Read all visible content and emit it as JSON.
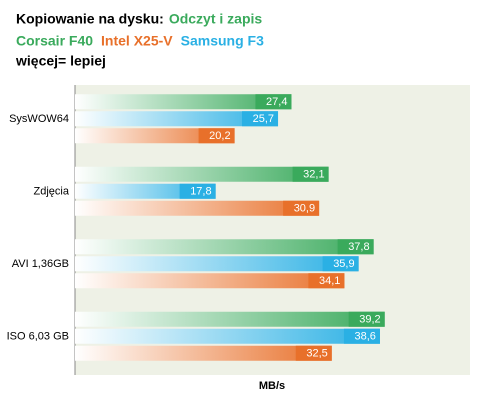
{
  "chart_data": {
    "type": "hbar",
    "title": "Kopiowanie na dysku:",
    "title_highlight": "Odczyt i zapis",
    "note": "więcej= lepiej",
    "xlabel": "MB/s",
    "categories": [
      "SysWOW64",
      "Zdjęcia",
      "AVI 1,36GB",
      "ISO 6,03 GB"
    ],
    "xlim": [
      0,
      50
    ],
    "series": [
      {
        "name": "Corsair F40",
        "color": "#3aaa5c",
        "values": [
          27.4,
          32.1,
          37.8,
          39.2
        ],
        "value_labels": [
          "27,4",
          "32,1",
          "37,8",
          "39,2"
        ]
      },
      {
        "name": "Intel X25-V",
        "color": "#e8702a",
        "values": [
          20.2,
          30.9,
          34.1,
          32.5
        ],
        "value_labels": [
          "20,2",
          "30,9",
          "34,1",
          "32,5"
        ]
      },
      {
        "name": "Samsung F3",
        "color": "#2ab0e4",
        "values": [
          25.7,
          17.8,
          35.9,
          38.6
        ],
        "value_labels": [
          "25,7",
          "17,8",
          "35,9",
          "38,6"
        ]
      }
    ]
  }
}
